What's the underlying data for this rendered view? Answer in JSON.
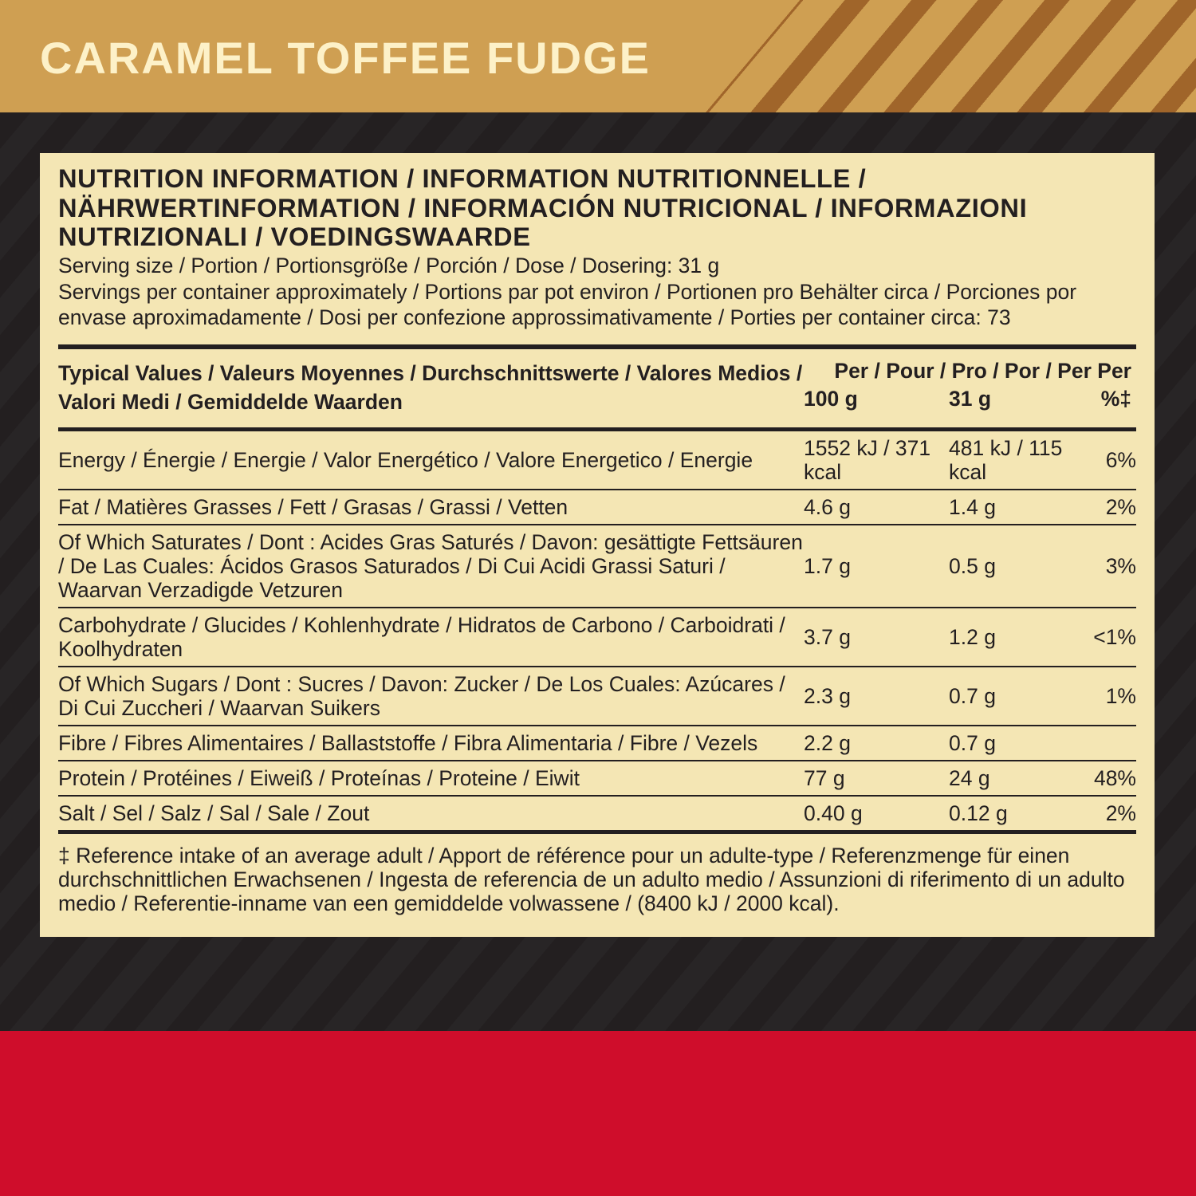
{
  "flavor": "CARAMEL TOFFEE FUDGE",
  "colors": {
    "gold": "#cf9f52",
    "stripe": "#a0652a",
    "dark": "#231f20",
    "panel": "#f4e6b4",
    "red": "#cf0d2b",
    "title_text": "#fdf1c8"
  },
  "title": "NUTRITION INFORMATION / INFORMATION NUTRITIONNELLE / NÄHRWERTINFORMATION / INFORMACIÓN NUTRICIONAL / INFORMAZIONI NUTRIZIONALI / VOEDINGSWAARDE",
  "serving_size": "Serving size / Portion / Portionsgröße / Porción / Dose / Dosering: 31 g",
  "servings_per": "Servings per container approximately / Portions par pot environ / Portionen pro Behälter circa / Porciones por envase aproximadamente / Dosi per confezione approssimativamente / Porties per container circa: 73",
  "header": {
    "label": "Typical Values / Valeurs Moyennes / Durchschnittswerte / Valores Medios / Valori Medi / Gemiddelde Waarden",
    "per": "Per / Pour / Pro / Por / Per Per",
    "c1": "100 g",
    "c2": "31 g",
    "c3": "%‡"
  },
  "rows": [
    {
      "label": "Energy / Énergie / Energie / Valor Energético / Valore Energetico / Energie",
      "c1": "1552 kJ / 371 kcal",
      "c2": "481 kJ / 115 kcal",
      "c3": "6%"
    },
    {
      "label": "Fat / Matières Grasses / Fett / Grasas / Grassi / Vetten",
      "c1": "4.6 g",
      "c2": "1.4 g",
      "c3": "2%"
    },
    {
      "label": "Of Which Saturates / Dont : Acides Gras Saturés / Davon: gesättigte Fettsäuren / De Las Cuales: Ácidos Grasos Saturados / Di Cui Acidi Grassi Saturi / Waarvan Verzadigde Vetzuren",
      "c1": "1.7 g",
      "c2": "0.5 g",
      "c3": "3%"
    },
    {
      "label": "Carbohydrate / Glucides / Kohlenhydrate / Hidratos de Carbono / Carboidrati / Koolhydraten",
      "c1": "3.7 g",
      "c2": "1.2 g",
      "c3": "<1%"
    },
    {
      "label": "Of Which Sugars / Dont : Sucres / Davon: Zucker / De Los Cuales: Azúcares / Di Cui Zuccheri / Waarvan Suikers",
      "c1": "2.3 g",
      "c2": "0.7 g",
      "c3": "1%"
    },
    {
      "label": "Fibre / Fibres Alimentaires / Ballaststoffe / Fibra Alimentaria / Fibre / Vezels",
      "c1": "2.2 g",
      "c2": "0.7 g",
      "c3": ""
    },
    {
      "label": "Protein / Protéines / Eiweiß / Proteínas / Proteine / Eiwit",
      "c1": "77 g",
      "c2": "24 g",
      "c3": "48%"
    },
    {
      "label": "Salt / Sel / Salz / Sal / Sale / Zout",
      "c1": "0.40 g",
      "c2": "0.12 g",
      "c3": "2%"
    }
  ],
  "footnote": "‡ Reference intake of an average adult / Apport de référence pour un adulte-type / Referenzmenge für einen durchschnittlichen Erwachsenen / Ingesta de referencia de un adulto medio / Assunzioni di riferimento di un adulto medio / Referentie-inname van een gemiddelde volwassene / (8400 kJ / 2000 kcal)."
}
